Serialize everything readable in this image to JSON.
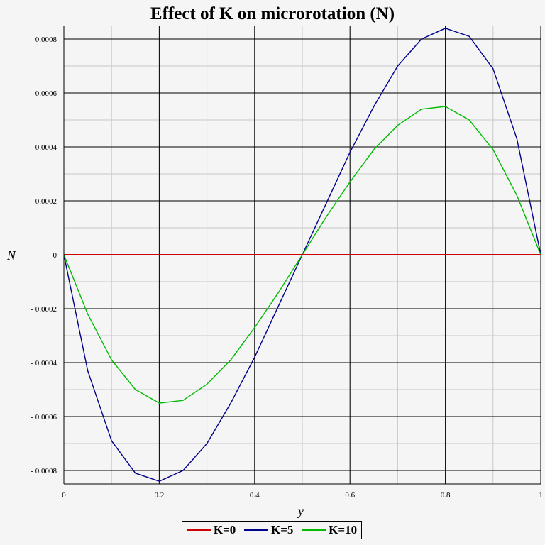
{
  "chart_data": {
    "type": "line",
    "title": "Effect of K on microrotation (N)",
    "xlabel": "y",
    "ylabel": "N",
    "xlim": [
      0,
      1
    ],
    "ylim": [
      -0.00085,
      0.00085
    ],
    "xticks": [
      0,
      0.2,
      0.4,
      0.6,
      0.8,
      1
    ],
    "xtick_labels": [
      "0",
      "0.2",
      "0.4",
      "0.6",
      "0.8",
      "1"
    ],
    "yticks": [
      -0.0008,
      -0.0006,
      -0.0004,
      -0.0002,
      0,
      0.0002,
      0.0004,
      0.0006,
      0.0008
    ],
    "ytick_labels": [
      "- 0.0008",
      "- 0.0006",
      "- 0.0004",
      "- 0.0002",
      "0",
      "0.0002",
      "0.0004",
      "0.0006",
      "0.0008"
    ],
    "grid": true,
    "legend_position": "bottom-center",
    "x": [
      0,
      0.05,
      0.1,
      0.15,
      0.2,
      0.25,
      0.3,
      0.35,
      0.4,
      0.45,
      0.5,
      0.55,
      0.6,
      0.65,
      0.7,
      0.75,
      0.8,
      0.85,
      0.9,
      0.95,
      1
    ],
    "series": [
      {
        "name": "K=0",
        "color": "#cc0000",
        "values": [
          0,
          0,
          0,
          0,
          0,
          0,
          0,
          0,
          0,
          0,
          0,
          0,
          0,
          0,
          0,
          0,
          0,
          0,
          0,
          0,
          0
        ]
      },
      {
        "name": "K=5",
        "color": "#00008b",
        "values": [
          0,
          -0.00043,
          -0.00069,
          -0.00081,
          -0.00084,
          -0.0008,
          -0.0007,
          -0.00055,
          -0.00038,
          -0.00019,
          0,
          0.00019,
          0.00038,
          0.00055,
          0.0007,
          0.0008,
          0.00084,
          0.00081,
          0.00069,
          0.00043,
          0
        ]
      },
      {
        "name": "K=10",
        "color": "#00bb00",
        "values": [
          0,
          -0.00022,
          -0.00039,
          -0.0005,
          -0.00055,
          -0.00054,
          -0.00048,
          -0.00039,
          -0.00027,
          -0.00014,
          0,
          0.00014,
          0.00027,
          0.00039,
          0.00048,
          0.00054,
          0.00055,
          0.0005,
          0.00039,
          0.00022,
          0
        ]
      }
    ]
  }
}
